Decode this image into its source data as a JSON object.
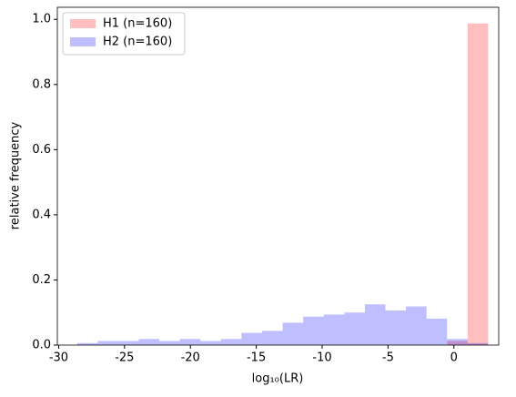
{
  "chart_data": {
    "type": "histogram",
    "xlabel": "log₁₀(LR)",
    "ylabel": "relative frequency",
    "bins": [
      -28.6,
      -27.04,
      -25.48,
      -23.92,
      -22.36,
      -20.8,
      -19.24,
      -17.68,
      -16.12,
      -14.56,
      -13.0,
      -11.44,
      -9.88,
      -8.32,
      -6.76,
      -5.2,
      -3.64,
      -2.08,
      -0.52,
      1.04,
      2.6
    ],
    "series": [
      {
        "name": "H1 (n=160)",
        "color": "#ff0000",
        "opacity": 0.25,
        "values": [
          0,
          0,
          0,
          0,
          0,
          0,
          0,
          0,
          0,
          0,
          0,
          0,
          0,
          0,
          0,
          0,
          0,
          0,
          0.0125,
          0.9875
        ]
      },
      {
        "name": "H2 (n=160)",
        "color": "#0000ff",
        "opacity": 0.25,
        "values": [
          0.00625,
          0.0125,
          0.0125,
          0.01875,
          0.0125,
          0.01875,
          0.0125,
          0.01875,
          0.0375,
          0.04375,
          0.06875,
          0.0875,
          0.09375,
          0.1,
          0.125,
          0.10625,
          0.11875,
          0.08125,
          0.01875,
          0.00625
        ]
      }
    ],
    "xlim": [
      -30.1,
      3.4
    ],
    "ylim": [
      0,
      1.037
    ],
    "xticks": [
      -30,
      -25,
      -20,
      -15,
      -10,
      -5,
      0
    ],
    "yticks": [
      {
        "value": 0,
        "label": "0.0"
      },
      {
        "value": 0.2,
        "label": "0.2"
      },
      {
        "value": 0.4,
        "label": "0.4"
      },
      {
        "value": 0.6,
        "label": "0.6"
      },
      {
        "value": 0.8,
        "label": "0.8"
      },
      {
        "value": 1.0,
        "label": "1.0"
      }
    ],
    "legend": "upper left"
  }
}
